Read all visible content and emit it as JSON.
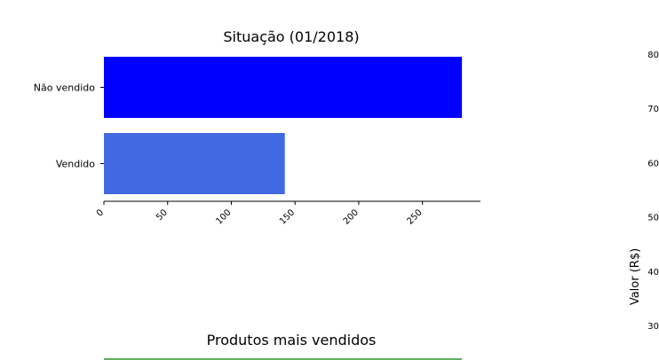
{
  "chart_data": [
    {
      "type": "bar",
      "orientation": "horizontal",
      "title": "Situação (01/2018)",
      "categories": [
        "Não vendido",
        "Vendido"
      ],
      "values": [
        281,
        142
      ],
      "colors": [
        "#0000ff",
        "#4169e1"
      ],
      "xlim": [
        0,
        295
      ],
      "xticks": [
        "0",
        "50",
        "100",
        "150",
        "200",
        "250"
      ],
      "xlabel": "",
      "ylabel": ""
    },
    {
      "type": "line",
      "title": "Produtos mais vendidos",
      "ylabel": "Valor (R$)",
      "yticks": [
        "30",
        "40",
        "50",
        "60",
        "70",
        "80"
      ],
      "series_colors": [
        "#008000"
      ]
    }
  ]
}
